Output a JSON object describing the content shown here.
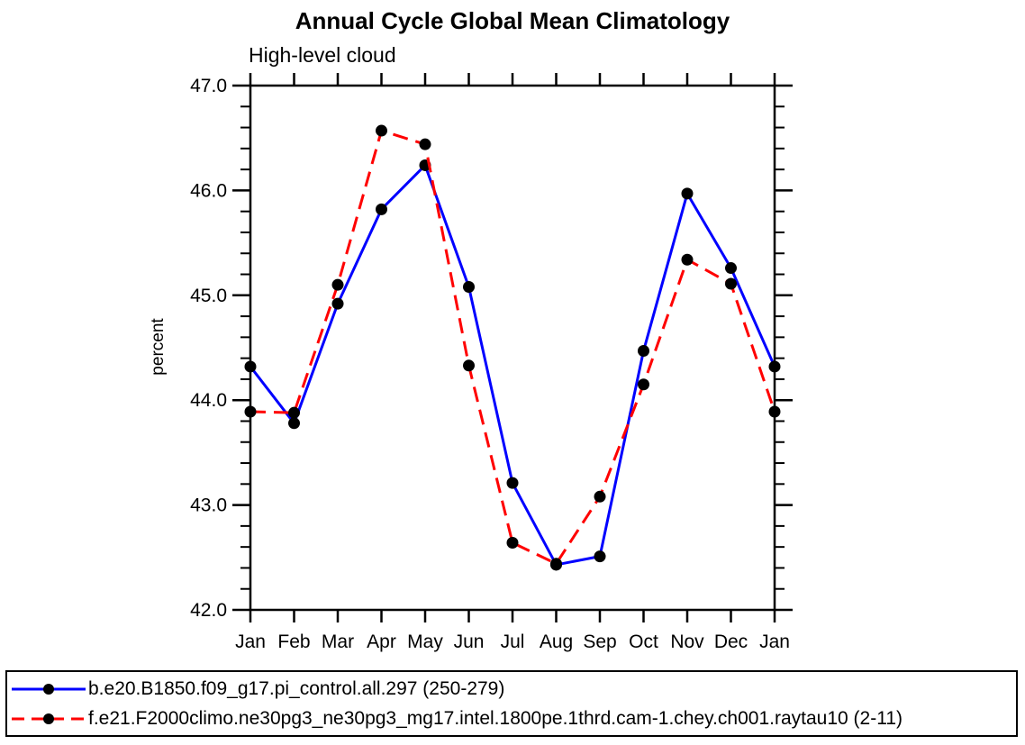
{
  "title": "Annual Cycle Global Mean Climatology",
  "chart_data": {
    "type": "line",
    "title": "Annual Cycle Global Mean Climatology",
    "subtitle": "High-level cloud",
    "ylabel": "percent",
    "xlabel": "",
    "x_categories": [
      "Jan",
      "Feb",
      "Mar",
      "Apr",
      "May",
      "Jun",
      "Jul",
      "Aug",
      "Sep",
      "Oct",
      "Nov",
      "Dec",
      "Jan"
    ],
    "ylim": [
      42.0,
      47.0
    ],
    "y_major_ticks": [
      "42.0",
      "43.0",
      "44.0",
      "45.0",
      "46.0",
      "47.0"
    ],
    "y_minor_step": 0.2,
    "grid": false,
    "legend_position": "bottom-outside-box",
    "series": [
      {
        "name": "b.e20.B1850.f09_g17.pi_control.all.297 (250-279)",
        "color": "#0000ff",
        "line_style": "solid",
        "marker": "filled-circle",
        "marker_color": "#000000",
        "values": [
          44.32,
          43.78,
          44.92,
          45.82,
          46.24,
          45.08,
          43.21,
          42.43,
          42.51,
          44.47,
          45.97,
          45.26,
          44.32
        ]
      },
      {
        "name": "f.e21.F2000climo.ne30pg3_ne30pg3_mg17.intel.1800pe.1thrd.cam-1.chey.ch001.raytau10 (2-11)",
        "color": "#ff0000",
        "line_style": "dashed",
        "marker": "filled-circle",
        "marker_color": "#000000",
        "values": [
          43.89,
          43.88,
          45.1,
          46.57,
          46.44,
          44.33,
          42.64,
          42.44,
          43.08,
          44.15,
          45.34,
          45.11,
          43.89
        ]
      }
    ],
    "colors": {
      "axis": "#000000",
      "background": "#ffffff"
    }
  }
}
